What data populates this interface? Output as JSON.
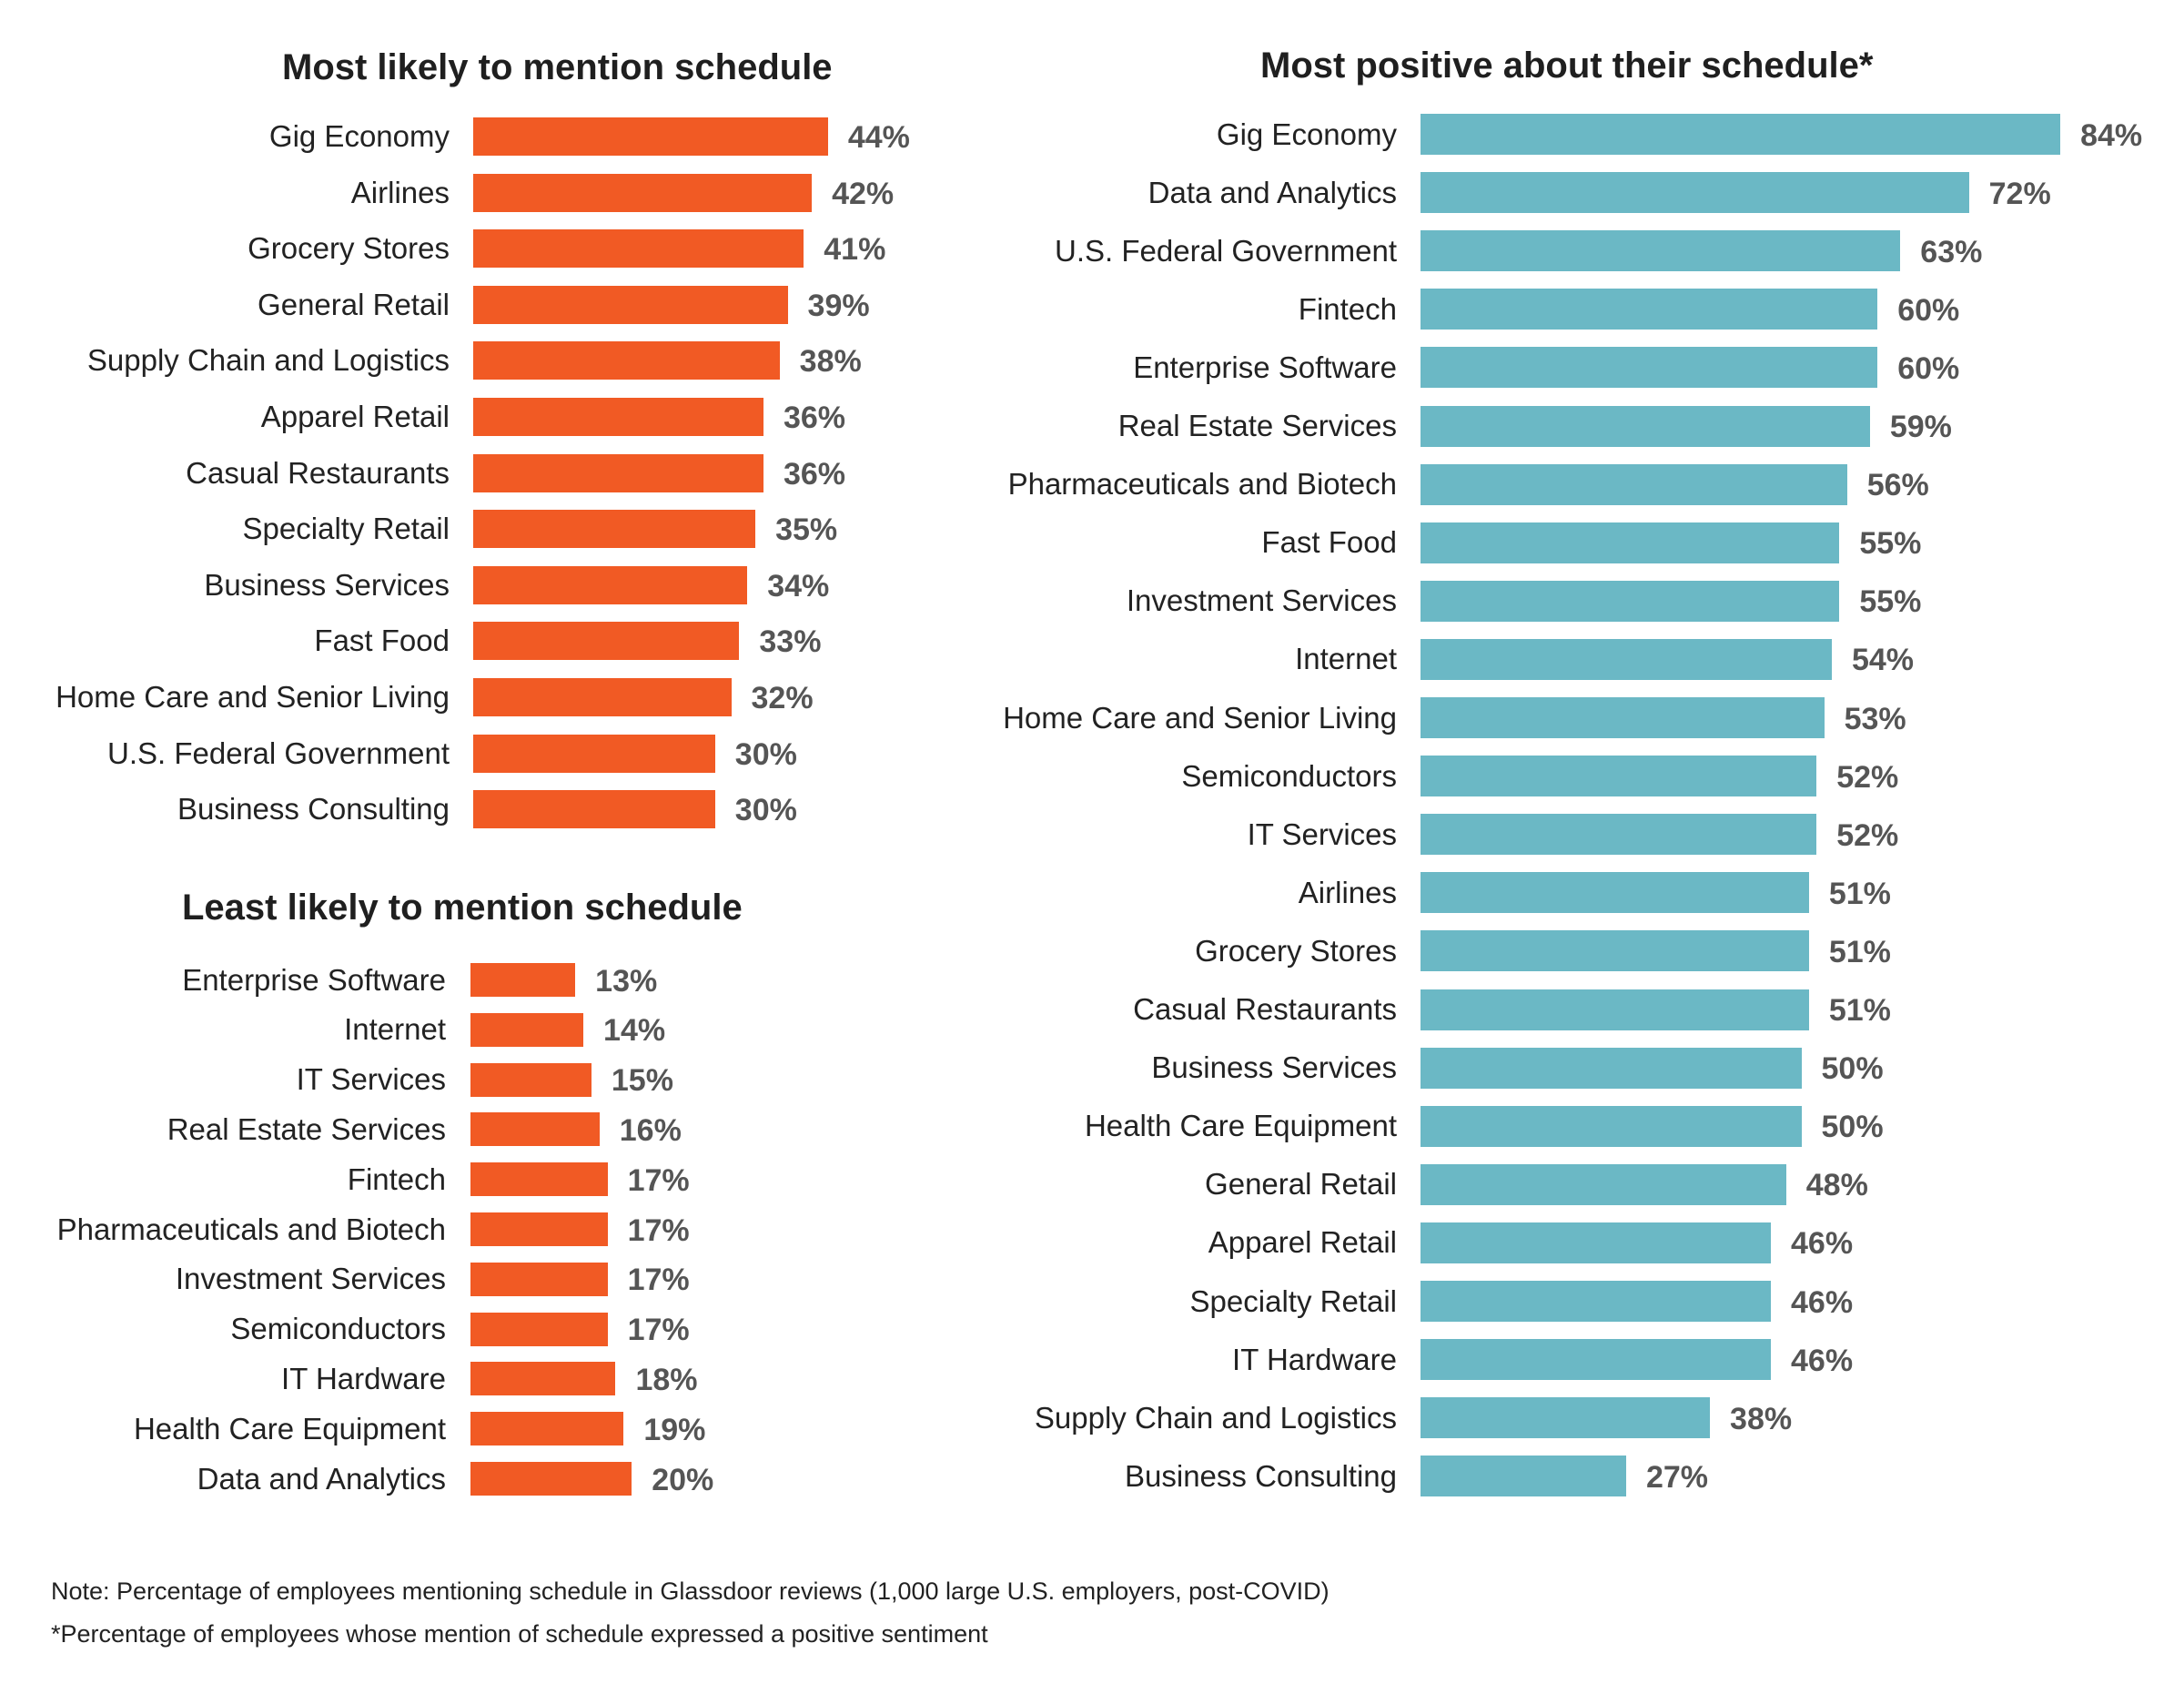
{
  "colors": {
    "orange": "#F15A24",
    "teal": "#6BB8C5"
  },
  "chart_data": [
    {
      "type": "bar",
      "orientation": "horizontal",
      "title": "Most likely to mention schedule",
      "unit": "%",
      "color": "#F15A24",
      "categories": [
        "Gig Economy",
        "Airlines",
        "Grocery Stores",
        "General Retail",
        "Supply Chain and Logistics",
        "Apparel Retail",
        "Casual Restaurants",
        "Specialty Retail",
        "Business Services",
        "Fast Food",
        "Home Care and Senior Living",
        "U.S. Federal Government",
        "Business Consulting"
      ],
      "values": [
        44,
        42,
        41,
        39,
        38,
        36,
        36,
        35,
        34,
        33,
        32,
        30,
        30
      ]
    },
    {
      "type": "bar",
      "orientation": "horizontal",
      "title": "Least likely to mention schedule",
      "unit": "%",
      "color": "#F15A24",
      "categories": [
        "Enterprise Software",
        "Internet",
        "IT Services",
        "Real Estate Services",
        "Fintech",
        "Pharmaceuticals and Biotech",
        "Investment Services",
        "Semiconductors",
        "IT Hardware",
        "Health Care Equipment",
        "Data and Analytics"
      ],
      "values": [
        13,
        14,
        15,
        16,
        17,
        17,
        17,
        17,
        18,
        19,
        20
      ]
    },
    {
      "type": "bar",
      "orientation": "horizontal",
      "title": "Most positive about their schedule*",
      "unit": "%",
      "color": "#6BB8C5",
      "categories": [
        "Gig Economy",
        "Data and Analytics",
        "U.S. Federal Government",
        "Fintech",
        "Enterprise Software",
        "Real Estate Services",
        "Pharmaceuticals and Biotech",
        "Fast Food",
        "Investment Services",
        "Internet",
        "Home Care and Senior Living",
        "Semiconductors",
        "IT Services",
        "Airlines",
        "Grocery Stores",
        "Casual Restaurants",
        "Business Services",
        "Health Care Equipment",
        "General Retail",
        "Apparel Retail",
        "Specialty Retail",
        "IT Hardware",
        "Supply Chain and Logistics",
        "Business Consulting"
      ],
      "values": [
        84,
        72,
        63,
        60,
        60,
        59,
        56,
        55,
        55,
        54,
        53,
        52,
        52,
        51,
        51,
        51,
        50,
        50,
        48,
        46,
        46,
        46,
        38,
        27
      ]
    }
  ],
  "notes": {
    "line1": "Note: Percentage of employees mentioning schedule in Glassdoor reviews (1,000 large U.S. employers, post-COVID)",
    "line2": "*Percentage of employees whose mention of schedule expressed a positive sentiment"
  }
}
